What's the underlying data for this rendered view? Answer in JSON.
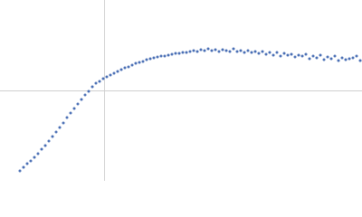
{
  "chart_data": {
    "type": "scatter",
    "color": "#4a6fb5",
    "xlim": [
      -115,
      285
    ],
    "ylim": [
      -100,
      100
    ],
    "x": [
      -93,
      -89,
      -85,
      -81,
      -77,
      -73,
      -69,
      -65,
      -61,
      -57,
      -53,
      -49,
      -45,
      -41,
      -37,
      -33,
      -29,
      -25,
      -21,
      -17,
      -13,
      -9,
      -5,
      -1,
      3,
      7,
      11,
      15,
      19,
      23,
      27,
      31,
      35,
      39,
      43,
      47,
      51,
      55,
      59,
      63,
      67,
      71,
      75,
      79,
      83,
      87,
      91,
      95,
      99,
      103,
      107,
      111,
      115,
      119,
      123,
      127,
      131,
      135,
      139,
      143,
      147,
      151,
      155,
      159,
      163,
      167,
      171,
      175,
      179,
      183,
      187,
      191,
      195,
      199,
      203,
      207,
      211,
      215,
      219,
      223,
      227,
      231,
      235,
      239,
      243,
      247,
      251,
      255,
      259,
      263,
      267,
      271,
      275,
      279,
      283
    ],
    "values": [
      -89,
      -85,
      -81,
      -78,
      -74,
      -70,
      -65,
      -61,
      -56,
      -51,
      -46,
      -41,
      -36,
      -30,
      -25,
      -20,
      -15,
      -10,
      -5,
      -1,
      4,
      8,
      10,
      13,
      15,
      17,
      19,
      21,
      23,
      25,
      26,
      28,
      30,
      31,
      32,
      34,
      35,
      36,
      37,
      38,
      38,
      39,
      40,
      41,
      41,
      42,
      42,
      43,
      44,
      43,
      45,
      44,
      46,
      44,
      45,
      43,
      45,
      44,
      43,
      46,
      43,
      44,
      42,
      44,
      42,
      43,
      41,
      43,
      40,
      42,
      39,
      42,
      38,
      41,
      39,
      40,
      37,
      39,
      38,
      40,
      35,
      38,
      36,
      39,
      34,
      37,
      35,
      38,
      33,
      36,
      34,
      35,
      36,
      38,
      33
    ]
  }
}
